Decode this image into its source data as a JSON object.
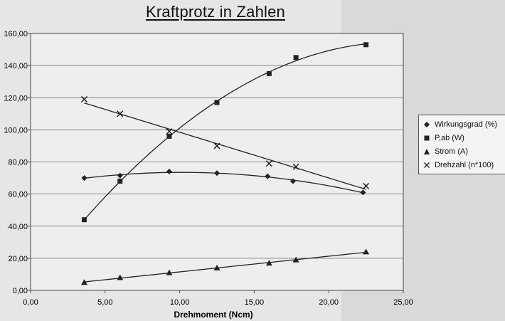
{
  "chart_data": {
    "type": "line",
    "title": "Kraftprotz in Zahlen",
    "xlabel": "Drehmoment (Ncm)",
    "ylabel": "",
    "xlim": [
      0,
      25
    ],
    "ylim": [
      0,
      160
    ],
    "x_ticks": [
      "0,00",
      "5,00",
      "10,00",
      "15,00",
      "20,00",
      "25,00"
    ],
    "y_ticks": [
      "0,00",
      "20,00",
      "40,00",
      "60,00",
      "80,00",
      "100,00",
      "120,00",
      "140,00",
      "160,00"
    ],
    "grid": "horizontal",
    "legend_position": "right",
    "series": [
      {
        "name": "Wirkungsgrad (%)",
        "marker": "diamond",
        "x": [
          3.6,
          6.0,
          9.3,
          12.5,
          15.9,
          17.6,
          22.3
        ],
        "y": [
          70,
          71.5,
          74,
          73,
          71,
          68,
          61
        ]
      },
      {
        "name": "P,ab (W)",
        "marker": "square",
        "x": [
          3.6,
          6.0,
          9.3,
          12.5,
          16.0,
          17.8,
          22.5
        ],
        "y": [
          44,
          68,
          96,
          117,
          135,
          145,
          153
        ]
      },
      {
        "name": "Strom (A)",
        "marker": "triangle",
        "x": [
          3.6,
          6.0,
          9.3,
          12.5,
          16.0,
          17.8,
          22.5
        ],
        "y": [
          5,
          8,
          11,
          14,
          17,
          19,
          24
        ]
      },
      {
        "name": "Drehzahl (n*100)",
        "marker": "x",
        "x": [
          3.6,
          6.0,
          9.3,
          12.5,
          16.0,
          17.8,
          22.5
        ],
        "y": [
          119,
          110,
          99,
          90,
          79,
          77,
          65
        ]
      }
    ]
  }
}
